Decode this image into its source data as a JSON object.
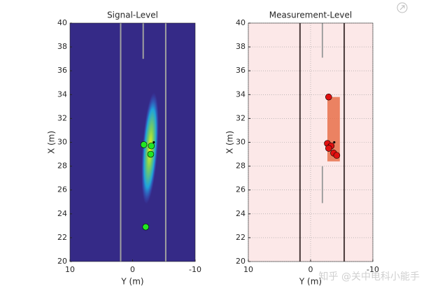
{
  "chart_data": [
    {
      "type": "scatter",
      "title": "Signal-Level",
      "xlabel": "Y (m)",
      "ylabel": "X (m)",
      "xlim": [
        10,
        -10
      ],
      "ylim": [
        20,
        40
      ],
      "xticks": [
        10,
        0,
        -10
      ],
      "yticks": [
        20,
        22,
        24,
        26,
        28,
        30,
        32,
        34,
        36,
        38,
        40
      ],
      "background": "#352a87",
      "grid": false,
      "lane_color": "#a0a0a0",
      "lanes": [
        {
          "x": 1.9,
          "values": [
            20,
            40
          ]
        },
        {
          "x": -5.3,
          "values": [
            20,
            40
          ]
        },
        {
          "x": -1.7,
          "values": [
            37,
            40
          ]
        }
      ],
      "series": [
        {
          "color": "#22e622",
          "x": [
            -1.8,
            -3.0,
            -2.9,
            -2.1
          ],
          "values": [
            29.8,
            29.7,
            29.0,
            22.9
          ],
          "size": 4.5
        },
        {
          "color": "#000000",
          "x": [
            -3.4
          ],
          "values": [
            30.0
          ],
          "size": 1.3
        }
      ]
    },
    {
      "type": "scatter",
      "title": "Measurement-Level",
      "xlabel": "Y (m)",
      "ylabel": "X (m)",
      "xlim": [
        10,
        -10
      ],
      "ylim": [
        20,
        40
      ],
      "xticks": [
        10,
        0,
        -10
      ],
      "yticks": [
        20,
        22,
        24,
        26,
        28,
        30,
        32,
        34,
        36,
        38,
        40
      ],
      "background": "#fce8e8",
      "grid": true,
      "lane_color": "#4a3a3a",
      "lanes": [
        {
          "x": 1.7,
          "values": [
            20,
            40
          ]
        },
        {
          "x": -5.4,
          "values": [
            20,
            40
          ]
        }
      ],
      "dashed_lanes": [
        {
          "x": -1.9,
          "values": [
            37.1,
            40
          ]
        },
        {
          "x": -1.9,
          "values": [
            24.9,
            28.0
          ]
        }
      ],
      "box": {
        "color": "#e8704a",
        "x": [
          -2.7,
          -4.7
        ],
        "values": [
          28.4,
          33.8
        ]
      },
      "series": [
        {
          "color": "#e01010",
          "x": [
            -2.9,
            -2.7,
            -3.3,
            -2.9,
            -3.7,
            -4.2
          ],
          "values": [
            33.8,
            29.9,
            29.7,
            29.5,
            29.1,
            28.9
          ],
          "size": 4.5
        },
        {
          "color": "#000000",
          "x": [
            -3.8
          ],
          "values": [
            30.0
          ],
          "size": 1.3
        }
      ]
    }
  ],
  "watermark": "知乎 @关中电科小能手"
}
